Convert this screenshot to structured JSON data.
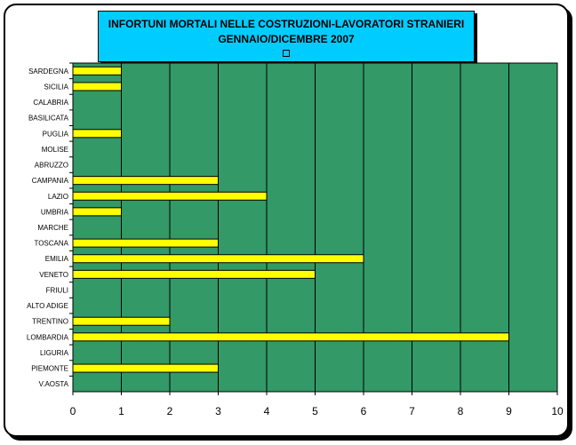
{
  "chart_data": {
    "type": "bar",
    "orientation": "horizontal",
    "title": "INFORTUNI MORTALI NELLE COSTRUZIONI-LAVORATORI STRANIERI",
    "subtitle": "GENNAIO/DICEMBRE  2007",
    "categories": [
      "SARDEGNA",
      "SICILIA",
      "CALABRIA",
      "BASILICATA",
      "PUGLIA",
      "MOLISE",
      "ABRUZZO",
      "CAMPANIA",
      "LAZIO",
      "UMBRIA",
      "MARCHE",
      "TOSCANA",
      "EMILIA",
      "VENETO",
      "FRIULI",
      "ALTO ADIGE",
      "TRENTINO",
      "LOMBARDIA",
      "LIGURIA",
      "PIEMONTE",
      "V.AOSTA"
    ],
    "values": [
      1,
      1,
      0,
      0,
      1,
      0,
      0,
      3,
      4,
      1,
      0,
      3,
      6,
      5,
      0,
      0,
      2,
      9,
      0,
      3,
      0
    ],
    "xlim": [
      0,
      10
    ],
    "xticks": [
      0,
      1,
      2,
      3,
      4,
      5,
      6,
      7,
      8,
      9,
      10
    ],
    "grid": true,
    "colors": {
      "plot_background": "#339966",
      "bar_fill": "#ffff00",
      "bar_stroke": "#000000",
      "title_background": "#00ccff",
      "gridline": "#000000"
    }
  }
}
